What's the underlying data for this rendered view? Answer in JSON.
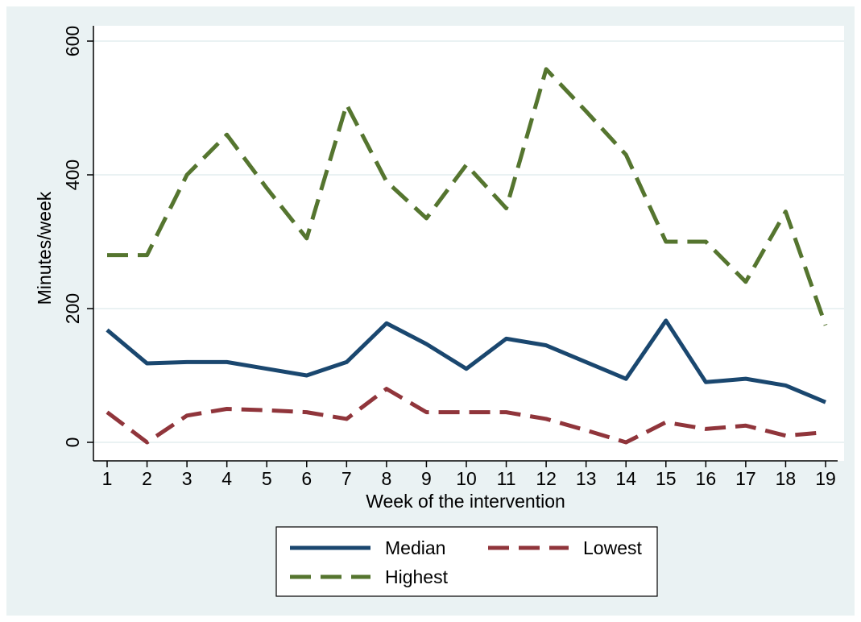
{
  "chart_data": {
    "type": "line",
    "title": "",
    "xlabel": "Week of the intervention",
    "ylabel": "Minutes/week",
    "x": [
      1,
      2,
      3,
      4,
      5,
      6,
      7,
      8,
      9,
      10,
      11,
      12,
      13,
      14,
      15,
      16,
      17,
      18,
      19
    ],
    "xlim": [
      1,
      19
    ],
    "ylim": [
      0,
      600
    ],
    "yticks": [
      0,
      200,
      400,
      600
    ],
    "grid": "horizontal",
    "legend_position": "bottom",
    "series": [
      {
        "name": "Median",
        "color": "#1a476f",
        "style": "solid",
        "values": [
          168,
          118,
          120,
          120,
          110,
          100,
          120,
          178,
          147,
          110,
          155,
          145,
          120,
          95,
          182,
          90,
          95,
          85,
          60
        ]
      },
      {
        "name": "Lowest",
        "color": "#90353b",
        "style": "dashed",
        "values": [
          45,
          0,
          40,
          50,
          48,
          45,
          35,
          80,
          45,
          45,
          45,
          35,
          18,
          0,
          30,
          20,
          25,
          10,
          15
        ]
      },
      {
        "name": "Highest",
        "color": "#55752f",
        "style": "dashed",
        "values": [
          280,
          280,
          400,
          460,
          380,
          305,
          505,
          390,
          335,
          415,
          350,
          558,
          495,
          430,
          300,
          300,
          240,
          345,
          175
        ]
      }
    ]
  }
}
